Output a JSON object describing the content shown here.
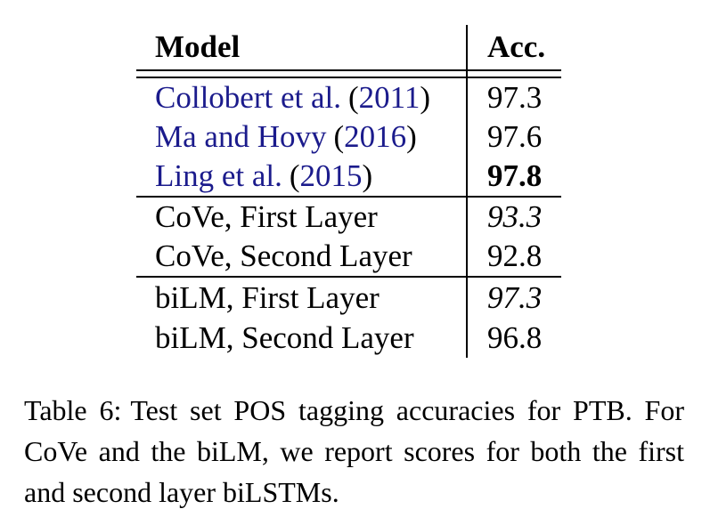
{
  "colors": {
    "background": "#ffffff",
    "text": "#000000",
    "citation_blue": "#1b1b8c",
    "rule": "#000000"
  },
  "table": {
    "header": {
      "model": "Model",
      "acc": "Acc."
    },
    "punct": {
      "open": "(",
      "close": ")"
    },
    "groups": [
      {
        "rows": [
          {
            "name": "Collobert et al.",
            "year": "2011",
            "acc": "97.3"
          },
          {
            "name": "Ma and Hovy",
            "year": "2016",
            "acc": "97.6"
          },
          {
            "name": "Ling et al.",
            "year": "2015",
            "acc": "97.8"
          }
        ]
      },
      {
        "rows": [
          {
            "model": "CoVe, First Layer",
            "acc": "93.3"
          },
          {
            "model": "CoVe, Second Layer",
            "acc": "92.8"
          }
        ]
      },
      {
        "rows": [
          {
            "model": "biLM, First Layer",
            "acc": "97.3"
          },
          {
            "model": "biLM, Second Layer",
            "acc": "96.8"
          }
        ]
      }
    ]
  },
  "caption": {
    "label": "Table 6:",
    "text": "Test set POS tagging accuracies for PTB. For CoVe and the biLM, we report scores for both the first and second layer biLSTMs."
  }
}
